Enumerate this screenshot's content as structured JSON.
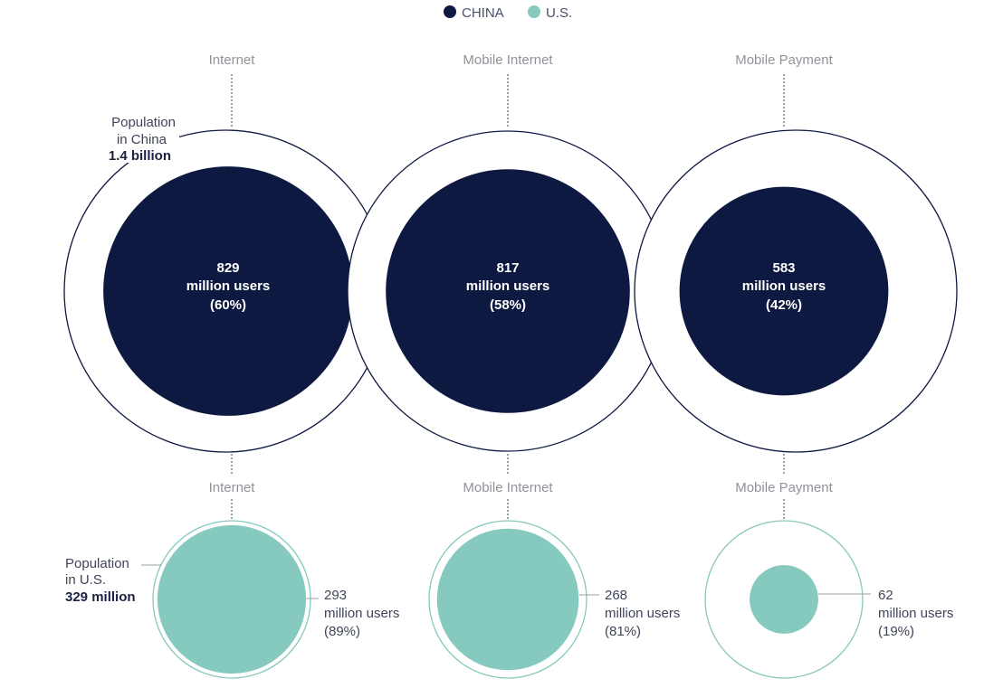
{
  "chart_data": {
    "type": "bubble",
    "legend": {
      "placement": "top-center",
      "entries": [
        "CHINA",
        "U.S."
      ]
    },
    "colors": {
      "china": "#0e1941",
      "us": "#86c9bf",
      "china_ring": "#0e1941",
      "us_ring": "#86c9bf",
      "guide": "#3a4060"
    },
    "categories": [
      "Internet",
      "Mobile Internet",
      "Mobile Payment"
    ],
    "series": [
      {
        "name": "CHINA",
        "population": {
          "line1": "Population",
          "line2": "in China",
          "value": "1.4 billion"
        },
        "points": [
          {
            "category": "Internet",
            "number": "829",
            "unit": "million users",
            "share": "(60%)",
            "fraction": 0.6
          },
          {
            "category": "Mobile Internet",
            "number": "817",
            "unit": "million users",
            "share": "(58%)",
            "fraction": 0.58
          },
          {
            "category": "Mobile Payment",
            "number": "583",
            "unit": "million users",
            "share": "(42%)",
            "fraction": 0.42
          }
        ]
      },
      {
        "name": "U.S.",
        "population": {
          "line1": "Population",
          "line2": "in U.S.",
          "value": "329 million"
        },
        "points": [
          {
            "category": "Internet",
            "number": "293",
            "unit": "million users",
            "share": "(89%)",
            "fraction": 0.89
          },
          {
            "category": "Mobile Internet",
            "number": "268",
            "unit": "million users",
            "share": "(81%)",
            "fraction": 0.81
          },
          {
            "category": "Mobile Payment",
            "number": "62",
            "unit": "million users",
            "share": "(19%)",
            "fraction": 0.19
          }
        ]
      }
    ]
  }
}
